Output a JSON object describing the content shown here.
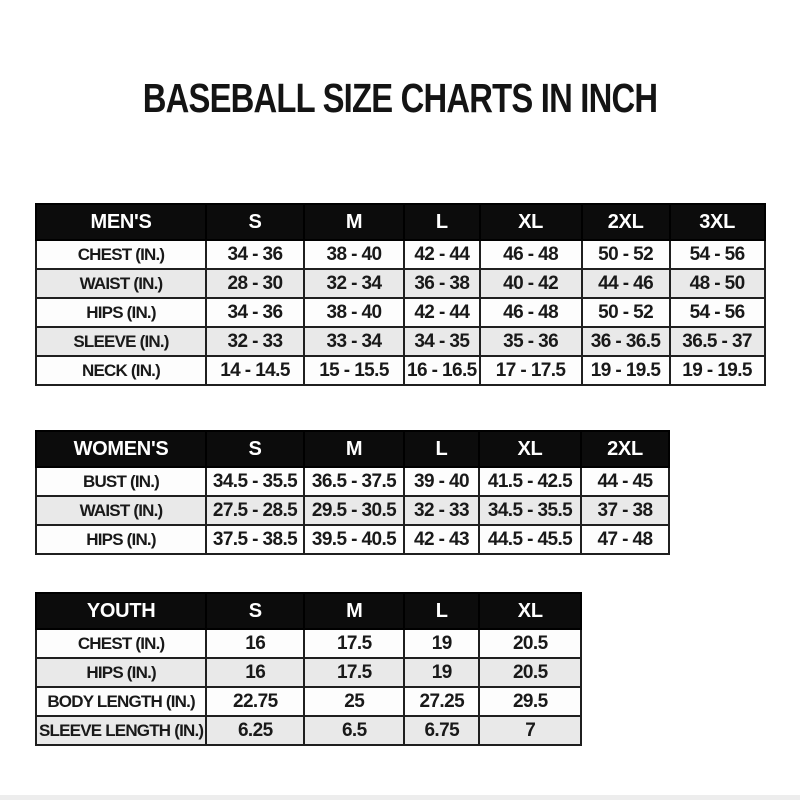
{
  "page": {
    "title": "BASEBALL SIZE CHARTS IN INCH"
  },
  "colors": {
    "page_bg": "#ffffff",
    "header_bg": "#0c0c0c",
    "header_text": "#ffffff",
    "row_bg": "#fdfdfd",
    "row_alt_bg": "#e9e9e9",
    "border": "#1f1f1f",
    "text": "#191919"
  },
  "chart_data": [
    {
      "type": "table",
      "title": "MEN'S",
      "header": [
        "MEN'S",
        "S",
        "M",
        "L",
        "XL",
        "2XL",
        "3XL"
      ],
      "rows": [
        [
          "CHEST (IN.)",
          "34 - 36",
          "38 - 40",
          "42 - 44",
          "46 - 48",
          "50 - 52",
          "54 - 56"
        ],
        [
          "WAIST (IN.)",
          "28 - 30",
          "32 - 34",
          "36 - 38",
          "40 - 42",
          "44 - 46",
          "48 - 50"
        ],
        [
          "HIPS (IN.)",
          "34 - 36",
          "38 - 40",
          "42 - 44",
          "46 - 48",
          "50 - 52",
          "54 - 56"
        ],
        [
          "SLEEVE (IN.)",
          "32 - 33",
          "33 - 34",
          "34 - 35",
          "35 - 36",
          "36 - 36.5",
          "36.5 - 37"
        ],
        [
          "NECK (IN.)",
          "14 - 14.5",
          "15 - 15.5",
          "16 - 16.5",
          "17 - 17.5",
          "19 - 19.5",
          "19 - 19.5"
        ]
      ]
    },
    {
      "type": "table",
      "title": "WOMEN'S",
      "header": [
        "WOMEN'S",
        "S",
        "M",
        "L",
        "XL",
        "2XL"
      ],
      "rows": [
        [
          "BUST (IN.)",
          "34.5 - 35.5",
          "36.5 - 37.5",
          "39 - 40",
          "41.5 - 42.5",
          "44 - 45"
        ],
        [
          "WAIST (IN.)",
          "27.5 - 28.5",
          "29.5 - 30.5",
          "32 - 33",
          "34.5 - 35.5",
          "37 - 38"
        ],
        [
          "HIPS (IN.)",
          "37.5 - 38.5",
          "39.5 - 40.5",
          "42 - 43",
          "44.5 - 45.5",
          "47 - 48"
        ]
      ]
    },
    {
      "type": "table",
      "title": "YOUTH",
      "header": [
        "YOUTH",
        "S",
        "M",
        "L",
        "XL"
      ],
      "rows": [
        [
          "CHEST (IN.)",
          "16",
          "17.5",
          "19",
          "20.5"
        ],
        [
          "HIPS (IN.)",
          "16",
          "17.5",
          "19",
          "20.5"
        ],
        [
          "BODY LENGTH (IN.)",
          "22.75",
          "25",
          "27.25",
          "29.5"
        ],
        [
          "SLEEVE LENGTH (IN.)",
          "6.25",
          "6.5",
          "6.75",
          "7"
        ]
      ]
    }
  ]
}
